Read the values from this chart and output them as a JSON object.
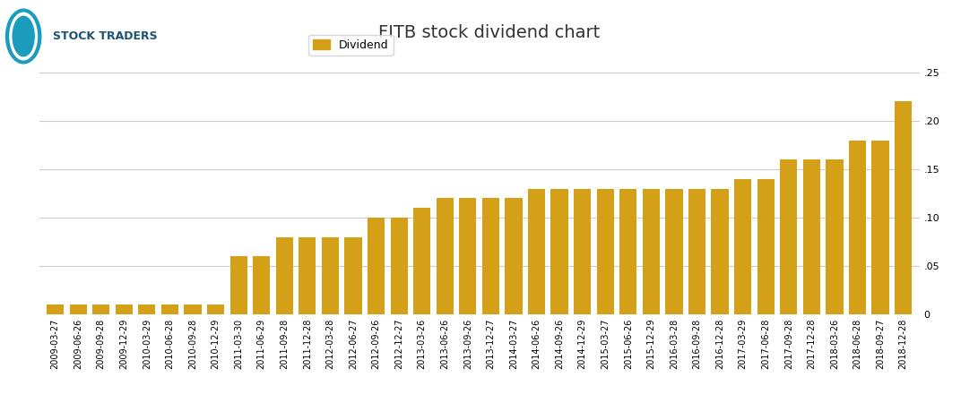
{
  "title": "FITB stock dividend chart",
  "bar_color": "#D4A017",
  "legend_label": "Dividend",
  "ylim": [
    0,
    0.25
  ],
  "yticks": [
    0,
    0.05,
    0.1,
    0.15,
    0.2,
    0.25
  ],
  "background_color": "#ffffff",
  "grid_color": "#cccccc",
  "header_line_color": "#aaaaaa",
  "categories": [
    "2009-03-27",
    "2009-06-26",
    "2009-09-28",
    "2009-12-29",
    "2010-03-29",
    "2010-06-28",
    "2010-09-28",
    "2010-12-29",
    "2011-03-30",
    "2011-06-29",
    "2011-09-28",
    "2011-12-28",
    "2012-03-28",
    "2012-06-27",
    "2012-09-26",
    "2012-12-27",
    "2013-03-26",
    "2013-06-26",
    "2013-09-26",
    "2013-12-27",
    "2014-03-27",
    "2014-06-26",
    "2014-09-26",
    "2014-12-29",
    "2015-03-27",
    "2015-06-26",
    "2015-12-29",
    "2016-03-28",
    "2016-09-28",
    "2016-12-28",
    "2017-03-29",
    "2017-06-28",
    "2017-09-28",
    "2017-12-28",
    "2018-03-26",
    "2018-06-28",
    "2018-09-27",
    "2018-12-28"
  ],
  "values": [
    0.01,
    0.01,
    0.01,
    0.01,
    0.01,
    0.01,
    0.01,
    0.01,
    0.06,
    0.06,
    0.08,
    0.08,
    0.08,
    0.08,
    0.1,
    0.1,
    0.11,
    0.12,
    0.12,
    0.12,
    0.12,
    0.13,
    0.13,
    0.13,
    0.13,
    0.13,
    0.13,
    0.13,
    0.13,
    0.13,
    0.14,
    0.14,
    0.16,
    0.16,
    0.16,
    0.18,
    0.18,
    0.22
  ],
  "title_fontsize": 14,
  "legend_fontsize": 9,
  "tick_fontsize": 8,
  "xtick_fontsize": 7
}
